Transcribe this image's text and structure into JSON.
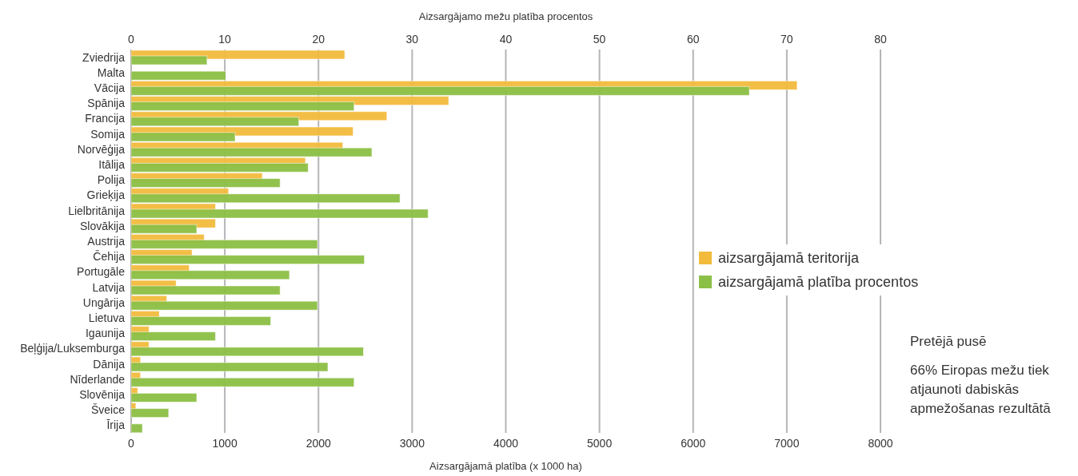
{
  "chart_data": {
    "type": "bar",
    "orientation": "horizontal",
    "categories": [
      "Zviedrija",
      "Malta",
      "Vācija",
      "Spānija",
      "Francija",
      "Somija",
      "Norvēģija",
      "Itālija",
      "Polija",
      "Grieķija",
      "Lielbritānija",
      "Slovākija",
      "Austrija",
      "Čehija",
      "Portugāle",
      "Latvija",
      "Ungārija",
      "Lietuva",
      "Igaunija",
      "Beļģija/Luksemburga",
      "Dānija",
      "Nīderlande",
      "Slovēnija",
      "Šveice",
      "Īrija"
    ],
    "series": [
      {
        "name": "aizsargājamā teritorija",
        "color": "#f2bb3c",
        "values": [
          2280,
          null,
          7110,
          3390,
          2730,
          2370,
          2260,
          1860,
          1400,
          1040,
          900,
          900,
          780,
          650,
          620,
          480,
          380,
          300,
          190,
          190,
          100,
          100,
          70,
          50,
          null
        ]
      },
      {
        "name": "aizsargājamā platība procentos",
        "color": "#8cbf45",
        "axis": "x2",
        "values": [
          8.1,
          10.1,
          66,
          23.8,
          17.9,
          11.1,
          25.7,
          18.9,
          15.9,
          28.7,
          31.7,
          7,
          19.9,
          24.9,
          16.9,
          15.9,
          19.9,
          14.9,
          9,
          24.8,
          21,
          23.8,
          7,
          4,
          1.2
        ]
      }
    ],
    "xlim": [
      0,
      8000
    ],
    "xticks": [
      0,
      1000,
      2000,
      3000,
      4000,
      5000,
      6000,
      7000,
      8000
    ],
    "x2lim": [
      0,
      80
    ],
    "x2ticks": [
      0,
      10,
      20,
      30,
      40,
      50,
      60,
      70,
      80
    ],
    "xlabel": "Aizsargājamā platība (x 1000 ha)",
    "x2label": "Aizsargājamo mežu platība procentos",
    "grid": "x",
    "legend": "right",
    "annotations": [
      "Pretējā pusē",
      "66% Eiropas mežu tiek atjaunoti dabiskās apmežošanas rezultātā"
    ]
  }
}
